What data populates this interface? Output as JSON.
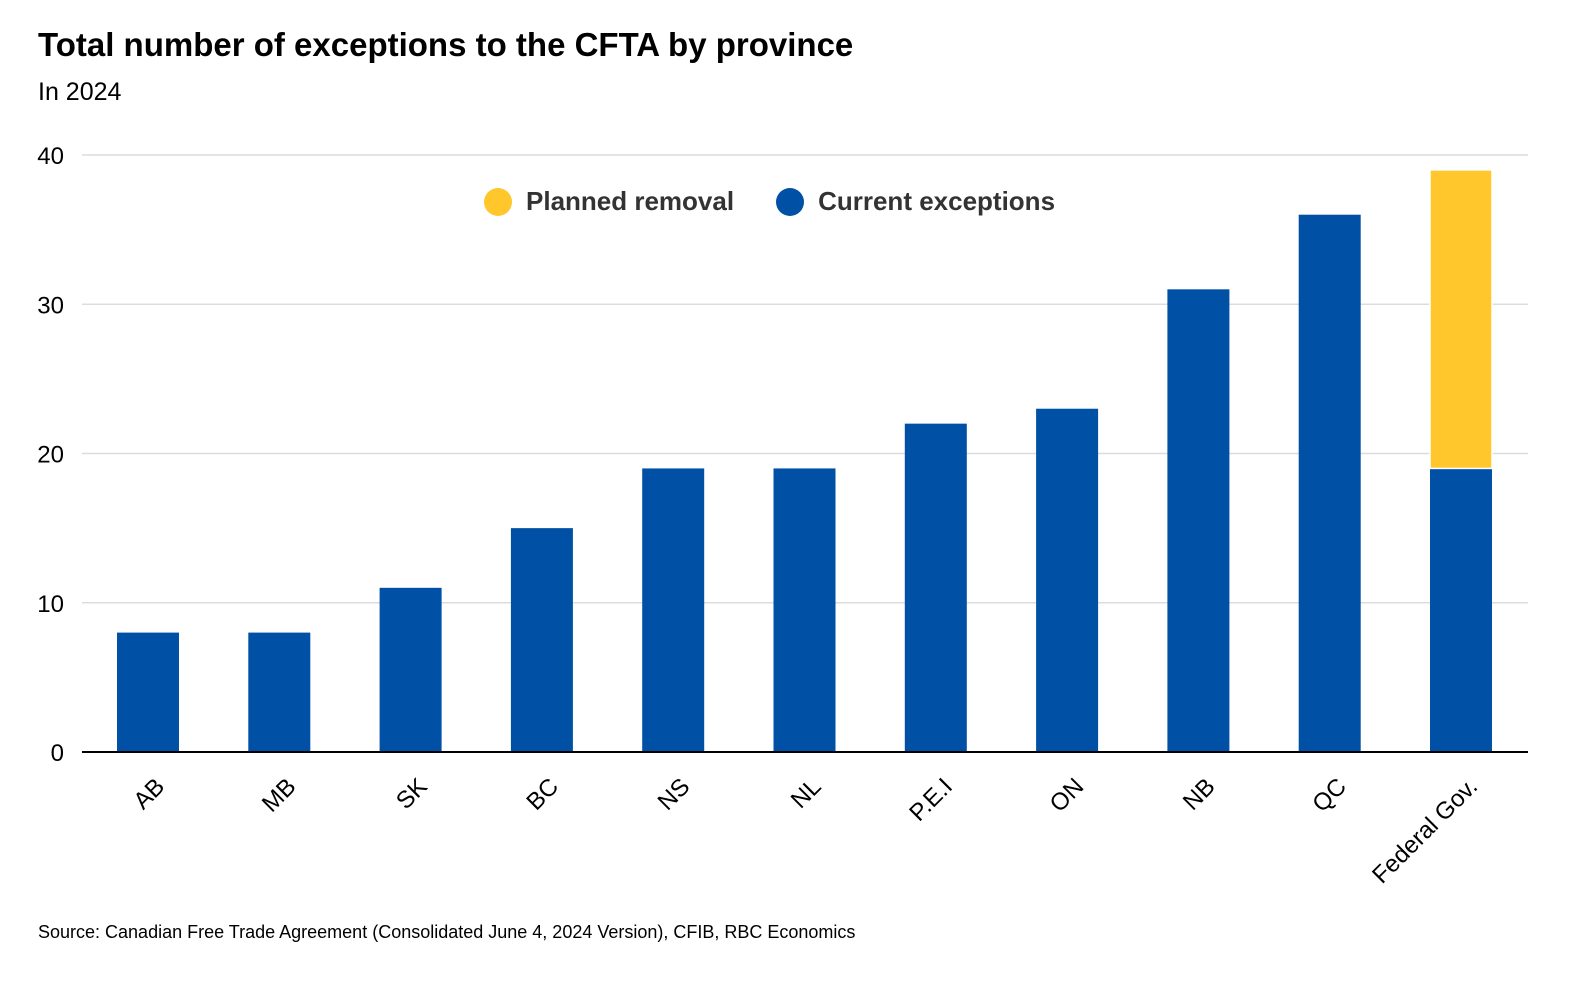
{
  "chart_data": {
    "type": "bar",
    "stacked": true,
    "title": "Total number of exceptions to the CFTA by province",
    "subtitle": "In 2024",
    "source": "Source: Canadian Free Trade Agreement (Consolidated June 4, 2024 Version), CFIB, RBC Economics",
    "categories": [
      "AB",
      "MB",
      "SK",
      "BC",
      "NS",
      "NL",
      "P.E.I",
      "ON",
      "NB",
      "QC",
      "Federal Gov."
    ],
    "series": [
      {
        "name": "Current exceptions",
        "color": "#0050a5",
        "values": [
          8,
          8,
          11,
          15,
          19,
          19,
          22,
          23,
          31,
          36,
          19
        ]
      },
      {
        "name": "Planned removal",
        "color": "#ffc72c",
        "values": [
          0,
          0,
          0,
          0,
          0,
          0,
          0,
          0,
          0,
          0,
          20
        ]
      }
    ],
    "legend": [
      {
        "label": "Planned removal",
        "color": "#ffc72c"
      },
      {
        "label": "Current exceptions",
        "color": "#0050a5"
      }
    ],
    "xlabel": "",
    "ylabel": "",
    "ylim": [
      0,
      40
    ],
    "yticks": [
      0,
      10,
      20,
      30,
      40
    ],
    "grid": true,
    "legend_position": "top-center"
  }
}
